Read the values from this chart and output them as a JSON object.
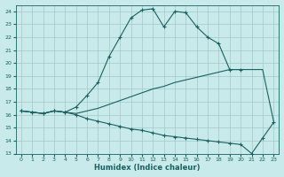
{
  "xlabel": "Humidex (Indice chaleur)",
  "background_color": "#c8eaea",
  "grid_color": "#a0c8c8",
  "line_color": "#1a6060",
  "xlim": [
    -0.5,
    23.5
  ],
  "ylim": [
    13,
    24.5
  ],
  "yticks": [
    13,
    14,
    15,
    16,
    17,
    18,
    19,
    20,
    21,
    22,
    23,
    24
  ],
  "xticks": [
    0,
    1,
    2,
    3,
    4,
    5,
    6,
    7,
    8,
    9,
    10,
    11,
    12,
    13,
    14,
    15,
    16,
    17,
    18,
    19,
    20,
    21,
    22,
    23
  ],
  "series1_x": [
    0,
    1,
    2,
    3,
    4,
    5,
    6,
    7,
    8,
    9,
    10,
    11,
    12,
    13,
    14,
    15,
    16,
    17,
    18,
    19,
    20
  ],
  "series1_y": [
    16.3,
    16.2,
    16.1,
    16.3,
    16.2,
    16.6,
    17.5,
    18.5,
    20.5,
    22.0,
    23.5,
    24.1,
    24.2,
    22.8,
    24.0,
    23.9,
    22.8,
    22.0,
    21.5,
    19.5,
    19.5
  ],
  "series2_x": [
    0,
    1,
    2,
    3,
    4,
    5,
    6,
    7,
    8,
    9,
    10,
    11,
    12,
    13,
    14,
    15,
    16,
    17,
    18,
    19,
    20,
    21,
    22,
    23
  ],
  "series2_y": [
    16.3,
    16.2,
    16.1,
    16.3,
    16.2,
    16.0,
    15.7,
    15.5,
    15.3,
    15.1,
    14.9,
    14.8,
    14.6,
    14.4,
    14.3,
    14.2,
    14.1,
    14.0,
    13.9,
    13.8,
    13.7,
    13.0,
    14.2,
    15.4
  ],
  "series3_x": [
    0,
    1,
    2,
    3,
    4,
    5,
    6,
    7,
    8,
    9,
    10,
    11,
    12,
    13,
    14,
    15,
    16,
    17,
    18,
    19,
    20,
    21,
    22,
    23
  ],
  "series3_y": [
    16.3,
    16.2,
    16.1,
    16.3,
    16.2,
    16.1,
    16.3,
    16.5,
    16.8,
    17.1,
    17.4,
    17.7,
    18.0,
    18.2,
    18.5,
    18.7,
    18.9,
    19.1,
    19.3,
    19.5,
    19.5,
    19.5,
    19.5,
    15.5
  ]
}
